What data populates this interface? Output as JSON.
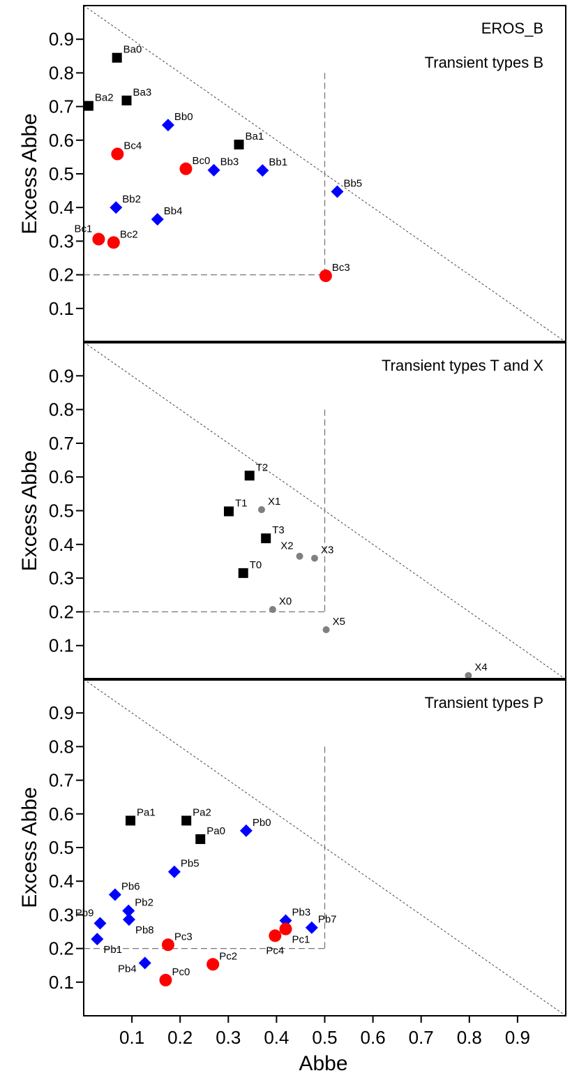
{
  "chart_data": {
    "type": "scatter",
    "xlabel": "Abbe",
    "ylabel": "Excess Abbe",
    "xlim": [
      0,
      1
    ],
    "ylim": [
      0,
      1
    ],
    "x_ticks": [
      0.1,
      0.2,
      0.3,
      0.4,
      0.5,
      0.6,
      0.7,
      0.8,
      0.9
    ],
    "y_ticks": [
      0.1,
      0.2,
      0.3,
      0.4,
      0.5,
      0.6,
      0.7,
      0.8,
      0.9
    ],
    "reference_lines": {
      "diagonal": "x + y = 1",
      "vertical_x": 0.5,
      "horizontal_y": 0.2
    },
    "colors": {
      "black": "#000000",
      "blue": "#0000ff",
      "red": "#ff0000",
      "gray": "#808080"
    },
    "panels": [
      {
        "id": "B",
        "titles": [
          "EROS_B",
          "Transient types B"
        ],
        "points": [
          {
            "label": "Ba0",
            "x": 0.069,
            "y": 0.845,
            "marker": "square",
            "color": "black",
            "label_pos": "ur"
          },
          {
            "label": "Ba1",
            "x": 0.322,
            "y": 0.587,
            "marker": "square",
            "color": "black",
            "label_pos": "ur"
          },
          {
            "label": "Ba2",
            "x": 0.01,
            "y": 0.702,
            "marker": "square",
            "color": "black",
            "label_pos": "ur"
          },
          {
            "label": "Ba3",
            "x": 0.089,
            "y": 0.718,
            "marker": "square",
            "color": "black",
            "label_pos": "ur"
          },
          {
            "label": "Bb0",
            "x": 0.175,
            "y": 0.645,
            "marker": "diamond",
            "color": "blue",
            "label_pos": "ur"
          },
          {
            "label": "Bb1",
            "x": 0.371,
            "y": 0.51,
            "marker": "diamond",
            "color": "blue",
            "label_pos": "ur"
          },
          {
            "label": "Bb2",
            "x": 0.067,
            "y": 0.4,
            "marker": "diamond",
            "color": "blue",
            "label_pos": "ur"
          },
          {
            "label": "Bb3",
            "x": 0.27,
            "y": 0.511,
            "marker": "diamond",
            "color": "blue",
            "label_pos": "ur"
          },
          {
            "label": "Bb4",
            "x": 0.153,
            "y": 0.365,
            "marker": "diamond",
            "color": "blue",
            "label_pos": "ur"
          },
          {
            "label": "Bb5",
            "x": 0.526,
            "y": 0.447,
            "marker": "diamond",
            "color": "blue",
            "label_pos": "ur"
          },
          {
            "label": "Bc0",
            "x": 0.212,
            "y": 0.515,
            "marker": "circle",
            "color": "red",
            "label_pos": "ur"
          },
          {
            "label": "Bc1",
            "x": 0.031,
            "y": 0.306,
            "marker": "circle",
            "color": "red",
            "label_pos": "ul"
          },
          {
            "label": "Bc2",
            "x": 0.062,
            "y": 0.296,
            "marker": "circle",
            "color": "red",
            "label_pos": "ur"
          },
          {
            "label": "Bc3",
            "x": 0.502,
            "y": 0.197,
            "marker": "circle",
            "color": "red",
            "label_pos": "ur"
          },
          {
            "label": "Bc4",
            "x": 0.07,
            "y": 0.559,
            "marker": "circle",
            "color": "red",
            "label_pos": "ur"
          }
        ]
      },
      {
        "id": "TX",
        "titles": [
          "Transient types T and X"
        ],
        "points": [
          {
            "label": "T0",
            "x": 0.331,
            "y": 0.315,
            "marker": "square",
            "color": "black",
            "label_pos": "ur"
          },
          {
            "label": "T1",
            "x": 0.301,
            "y": 0.498,
            "marker": "square",
            "color": "black",
            "label_pos": "ur"
          },
          {
            "label": "T2",
            "x": 0.344,
            "y": 0.604,
            "marker": "square",
            "color": "black",
            "label_pos": "ur"
          },
          {
            "label": "T3",
            "x": 0.378,
            "y": 0.418,
            "marker": "square",
            "color": "black",
            "label_pos": "ur"
          },
          {
            "label": "X0",
            "x": 0.392,
            "y": 0.207,
            "marker": "dot",
            "color": "gray",
            "label_pos": "ur"
          },
          {
            "label": "X1",
            "x": 0.369,
            "y": 0.503,
            "marker": "dot",
            "color": "gray",
            "label_pos": "ur"
          },
          {
            "label": "X2",
            "x": 0.448,
            "y": 0.365,
            "marker": "dot",
            "color": "gray",
            "label_pos": "ul"
          },
          {
            "label": "X3",
            "x": 0.479,
            "y": 0.359,
            "marker": "dot",
            "color": "gray",
            "label_pos": "ur"
          },
          {
            "label": "X4",
            "x": 0.798,
            "y": 0.011,
            "marker": "dot",
            "color": "gray",
            "label_pos": "ur"
          },
          {
            "label": "X5",
            "x": 0.503,
            "y": 0.147,
            "marker": "dot",
            "color": "gray",
            "label_pos": "ur"
          }
        ]
      },
      {
        "id": "P",
        "titles": [
          "Transient types P"
        ],
        "points": [
          {
            "label": "Pa0",
            "x": 0.242,
            "y": 0.525,
            "marker": "square",
            "color": "black",
            "label_pos": "ur"
          },
          {
            "label": "Pa1",
            "x": 0.097,
            "y": 0.58,
            "marker": "square",
            "color": "black",
            "label_pos": "ur"
          },
          {
            "label": "Pa2",
            "x": 0.213,
            "y": 0.58,
            "marker": "square",
            "color": "black",
            "label_pos": "ur"
          },
          {
            "label": "Pb0",
            "x": 0.337,
            "y": 0.55,
            "marker": "diamond",
            "color": "blue",
            "label_pos": "ur"
          },
          {
            "label": "Pb1",
            "x": 0.028,
            "y": 0.228,
            "marker": "diamond",
            "color": "blue",
            "label_pos": "lr"
          },
          {
            "label": "Pb2",
            "x": 0.093,
            "y": 0.312,
            "marker": "diamond",
            "color": "blue",
            "label_pos": "ur"
          },
          {
            "label": "Pb3",
            "x": 0.419,
            "y": 0.283,
            "marker": "diamond",
            "color": "blue",
            "label_pos": "ur"
          },
          {
            "label": "Pb4",
            "x": 0.127,
            "y": 0.157,
            "marker": "diamond",
            "color": "blue",
            "label_pos": "ll"
          },
          {
            "label": "Pb5",
            "x": 0.188,
            "y": 0.428,
            "marker": "diamond",
            "color": "blue",
            "label_pos": "ur"
          },
          {
            "label": "Pb6",
            "x": 0.065,
            "y": 0.36,
            "marker": "diamond",
            "color": "blue",
            "label_pos": "ur"
          },
          {
            "label": "Pb7",
            "x": 0.473,
            "y": 0.262,
            "marker": "diamond",
            "color": "blue",
            "label_pos": "ur"
          },
          {
            "label": "Pb8",
            "x": 0.094,
            "y": 0.286,
            "marker": "diamond",
            "color": "blue",
            "label_pos": "lr"
          },
          {
            "label": "Pb9",
            "x": 0.034,
            "y": 0.275,
            "marker": "diamond",
            "color": "blue",
            "label_pos": "ul"
          },
          {
            "label": "Pc0",
            "x": 0.17,
            "y": 0.106,
            "marker": "circle",
            "color": "red",
            "label_pos": "ur"
          },
          {
            "label": "Pc1",
            "x": 0.419,
            "y": 0.258,
            "marker": "circle",
            "color": "red",
            "label_pos": "lr"
          },
          {
            "label": "Pc2",
            "x": 0.268,
            "y": 0.153,
            "marker": "circle",
            "color": "red",
            "label_pos": "ur"
          },
          {
            "label": "Pc3",
            "x": 0.175,
            "y": 0.211,
            "marker": "circle",
            "color": "red",
            "label_pos": "ur"
          },
          {
            "label": "Pc4",
            "x": 0.397,
            "y": 0.238,
            "marker": "circle",
            "color": "red",
            "label_pos": "lc"
          }
        ]
      }
    ]
  }
}
